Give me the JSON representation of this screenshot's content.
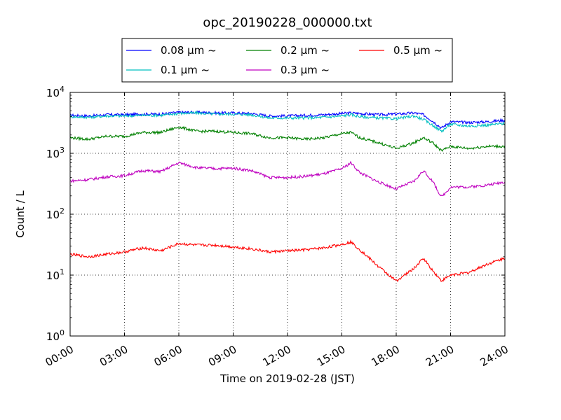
{
  "chart_data": {
    "type": "line",
    "title": "opc_20190228_000000.txt",
    "xlabel": "Time on 2019-02-28 (JST)",
    "ylabel": "Count / L",
    "y_scale": "log",
    "xlim": [
      "2019-02-28 00:00",
      "2019-02-29 00:00"
    ],
    "ylim": [
      1,
      10000
    ],
    "x_ticks": [
      "00:00",
      "03:00",
      "06:00",
      "09:00",
      "12:00",
      "15:00",
      "18:00",
      "21:00",
      "24:00"
    ],
    "y_ticks": [
      {
        "value": 1,
        "base": "10",
        "exp": "0"
      },
      {
        "value": 10,
        "base": "10",
        "exp": "1"
      },
      {
        "value": 100,
        "base": "10",
        "exp": "2"
      },
      {
        "value": 1000,
        "base": "10",
        "exp": "3"
      },
      {
        "value": 10000,
        "base": "10",
        "exp": "4"
      }
    ],
    "grid": true,
    "legend_position": "top-center",
    "x": [
      "00:00",
      "01:00",
      "02:00",
      "03:00",
      "04:00",
      "05:00",
      "06:00",
      "07:00",
      "08:00",
      "09:00",
      "10:00",
      "11:00",
      "12:00",
      "13:00",
      "14:00",
      "15:00",
      "15:30",
      "16:00",
      "17:00",
      "18:00",
      "19:00",
      "19:30",
      "20:00",
      "20:30",
      "21:00",
      "22:00",
      "23:00",
      "24:00"
    ],
    "series": [
      {
        "name": "0.08 μm ~",
        "color": "#0000ff",
        "values": [
          4200,
          4100,
          4300,
          4300,
          4400,
          4400,
          4700,
          4700,
          4600,
          4600,
          4500,
          4100,
          4100,
          4200,
          4300,
          4500,
          4600,
          4500,
          4300,
          4400,
          4600,
          4300,
          3400,
          2600,
          3300,
          3200,
          3300,
          3500
        ]
      },
      {
        "name": "0.1 μm ~",
        "color": "#00bfbf",
        "values": [
          4000,
          3900,
          4100,
          4100,
          4200,
          4200,
          4500,
          4600,
          4400,
          4400,
          4300,
          3800,
          3800,
          3800,
          3900,
          4100,
          4300,
          4000,
          3800,
          3700,
          4100,
          3600,
          2900,
          2300,
          3000,
          2800,
          2900,
          3100
        ]
      },
      {
        "name": "0.2 μm ~",
        "color": "#008000",
        "values": [
          1800,
          1700,
          1900,
          1900,
          2200,
          2200,
          2700,
          2300,
          2300,
          2200,
          2100,
          1800,
          1800,
          1700,
          1800,
          2100,
          2200,
          1800,
          1500,
          1200,
          1500,
          1800,
          1500,
          1100,
          1300,
          1200,
          1300,
          1300
        ]
      },
      {
        "name": "0.3 μm ~",
        "color": "#bf00bf",
        "values": [
          350,
          370,
          410,
          430,
          520,
          500,
          700,
          580,
          560,
          570,
          520,
          400,
          400,
          420,
          460,
          560,
          700,
          480,
          340,
          260,
          350,
          520,
          350,
          190,
          280,
          280,
          300,
          340
        ]
      },
      {
        "name": "0.5 μm ~",
        "color": "#ff0000",
        "values": [
          22,
          20,
          22,
          24,
          28,
          25,
          33,
          31,
          31,
          29,
          27,
          24,
          25,
          26,
          28,
          32,
          35,
          26,
          14,
          8,
          13,
          19,
          12,
          8,
          10,
          11,
          15,
          19
        ]
      }
    ]
  }
}
